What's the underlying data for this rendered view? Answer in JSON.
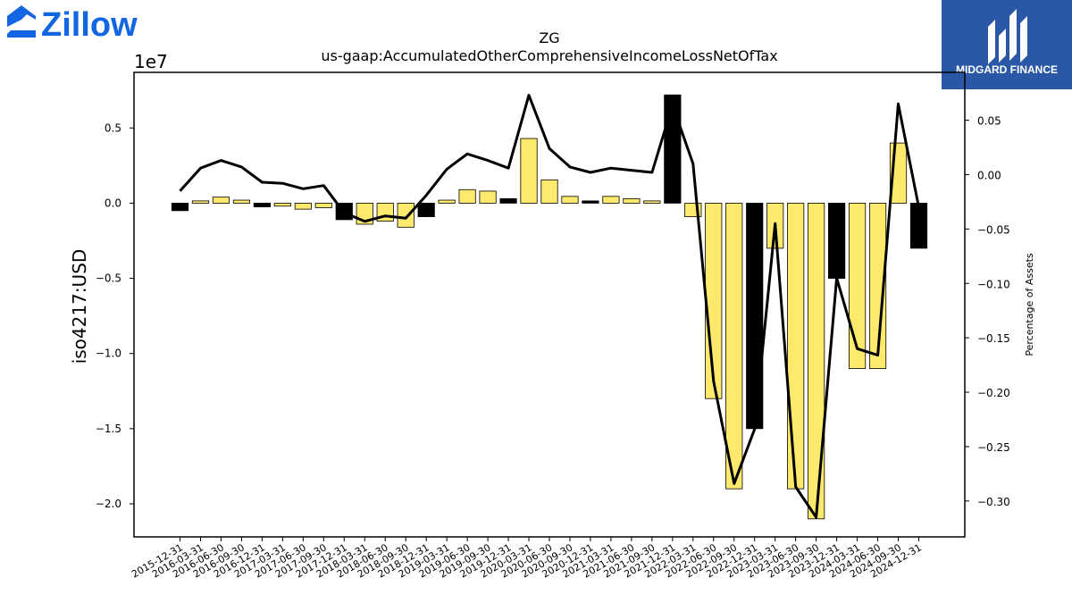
{
  "brand": {
    "left_logo_text": "Zillow",
    "right_logo_text": "MIDGARD FINANCE",
    "left_logo_color": "#1266e1",
    "right_logo_bg": "#2a58a6"
  },
  "chart_data": {
    "type": "bar",
    "title": "ZG",
    "subtitle": "us-gaap:AccumulatedOtherComprehensiveIncomeLossNetOfTax",
    "ylabel": "iso4217:USD",
    "y2label": "Percentage of Assets",
    "y_offset_label": "1e7",
    "ylim": [
      -2.22,
      0.87
    ],
    "y2lim": [
      -0.333,
      0.094
    ],
    "yticks": [
      0.5,
      0.0,
      -0.5,
      -1.0,
      -1.5,
      -2.0
    ],
    "yticklabels": [
      "0.5",
      "0.0",
      "−0.5",
      "−1.0",
      "−1.5",
      "−2.0"
    ],
    "y2ticks": [
      0.05,
      0.0,
      -0.05,
      -0.1,
      -0.15,
      -0.2,
      -0.25,
      -0.3
    ],
    "y2ticklabels": [
      "0.05",
      "0.00",
      "−0.05",
      "−0.10",
      "−0.15",
      "−0.20",
      "−0.25",
      "−0.30"
    ],
    "colors": {
      "positive_change": "#fde96c",
      "negative_change": "#000000",
      "line": "#000000"
    },
    "categories": [
      "2015-12-31",
      "2016-03-31",
      "2016-06-30",
      "2016-09-30",
      "2016-12-31",
      "2017-03-31",
      "2017-06-30",
      "2017-09-30",
      "2017-12-31",
      "2018-03-31",
      "2018-06-30",
      "2018-09-30",
      "2018-12-31",
      "2019-03-31",
      "2019-06-30",
      "2019-09-30",
      "2019-12-31",
      "2020-03-31",
      "2020-06-30",
      "2020-09-30",
      "2020-12-31",
      "2021-03-31",
      "2021-06-30",
      "2021-09-30",
      "2021-12-31",
      "2022-03-31",
      "2022-06-30",
      "2022-09-30",
      "2022-12-31",
      "2023-03-31",
      "2023-06-30",
      "2023-09-30",
      "2023-12-31",
      "2024-03-31",
      "2024-06-30",
      "2024-09-30",
      "2024-12-31"
    ],
    "series": [
      {
        "name": "iso4217:USD",
        "kind": "bar",
        "values": [
          -0.05,
          0.015,
          0.04,
          0.02,
          -0.025,
          -0.02,
          -0.04,
          -0.03,
          -0.11,
          -0.14,
          -0.12,
          -0.16,
          -0.09,
          0.02,
          0.09,
          0.08,
          0.03,
          0.43,
          0.155,
          0.045,
          0.015,
          0.045,
          0.03,
          0.015,
          0.72,
          -0.09,
          -1.3,
          -1.9,
          -1.5,
          -0.3,
          -1.9,
          -2.1,
          -0.5,
          -1.1,
          -1.1,
          0.4,
          -0.3
        ],
        "bar_colors": [
          "#000000",
          "#fde96c",
          "#fde96c",
          "#fde96c",
          "#000000",
          "#fde96c",
          "#fde96c",
          "#fde96c",
          "#000000",
          "#fde96c",
          "#fde96c",
          "#fde96c",
          "#000000",
          "#fde96c",
          "#fde96c",
          "#fde96c",
          "#000000",
          "#fde96c",
          "#fde96c",
          "#fde96c",
          "#000000",
          "#fde96c",
          "#fde96c",
          "#fde96c",
          "#000000",
          "#fde96c",
          "#fde96c",
          "#fde96c",
          "#000000",
          "#fde96c",
          "#fde96c",
          "#fde96c",
          "#000000",
          "#fde96c",
          "#fde96c",
          "#fde96c",
          "#000000"
        ]
      },
      {
        "name": "Percentage of Assets",
        "kind": "line",
        "axis": "right",
        "values": [
          -0.015,
          0.006,
          0.013,
          0.007,
          -0.007,
          -0.008,
          -0.013,
          -0.01,
          -0.035,
          -0.043,
          -0.038,
          -0.04,
          -0.019,
          0.005,
          0.019,
          0.013,
          0.006,
          0.073,
          0.024,
          0.007,
          0.002,
          0.006,
          0.004,
          0.002,
          0.064,
          0.01,
          -0.19,
          -0.284,
          -0.234,
          -0.045,
          -0.287,
          -0.315,
          -0.095,
          -0.16,
          -0.166,
          0.065,
          -0.03
        ]
      }
    ]
  }
}
